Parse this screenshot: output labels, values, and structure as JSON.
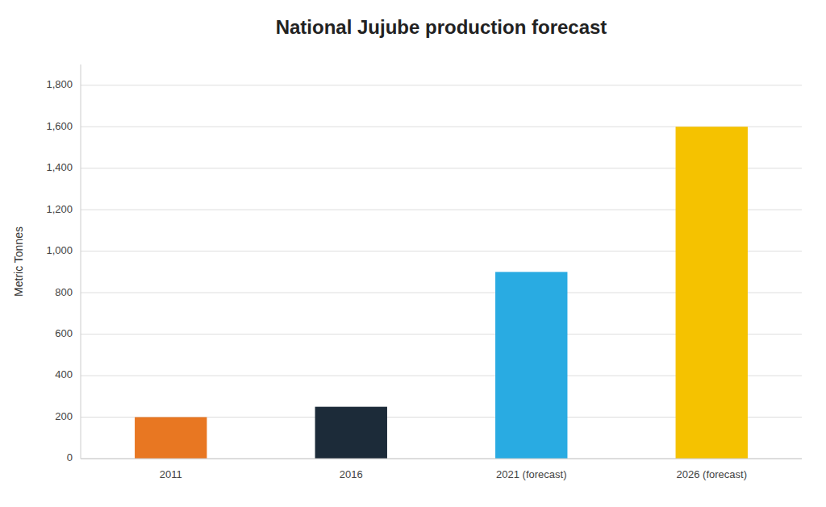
{
  "chart_data": {
    "type": "bar",
    "title": "National Jujube production forecast",
    "categories": [
      "2011",
      "2016",
      "2021 (forecast)",
      "2026 (forecast)"
    ],
    "values": [
      200,
      250,
      900,
      1600
    ],
    "colors": [
      "#E87722",
      "#1C2B39",
      "#29ABE2",
      "#F5C200"
    ],
    "ylabel": "Metric Tonnes",
    "ylim": [
      0,
      1900
    ],
    "yticks": [
      0,
      200,
      400,
      600,
      800,
      {
        "value": 1000,
        "label": "1,000"
      },
      {
        "value": 1200,
        "label": "1,200"
      },
      {
        "value": 1400,
        "label": "1,400"
      },
      {
        "value": 1600,
        "label": "1,600"
      },
      {
        "value": 1800,
        "label": "1,800"
      }
    ],
    "grid": true
  }
}
